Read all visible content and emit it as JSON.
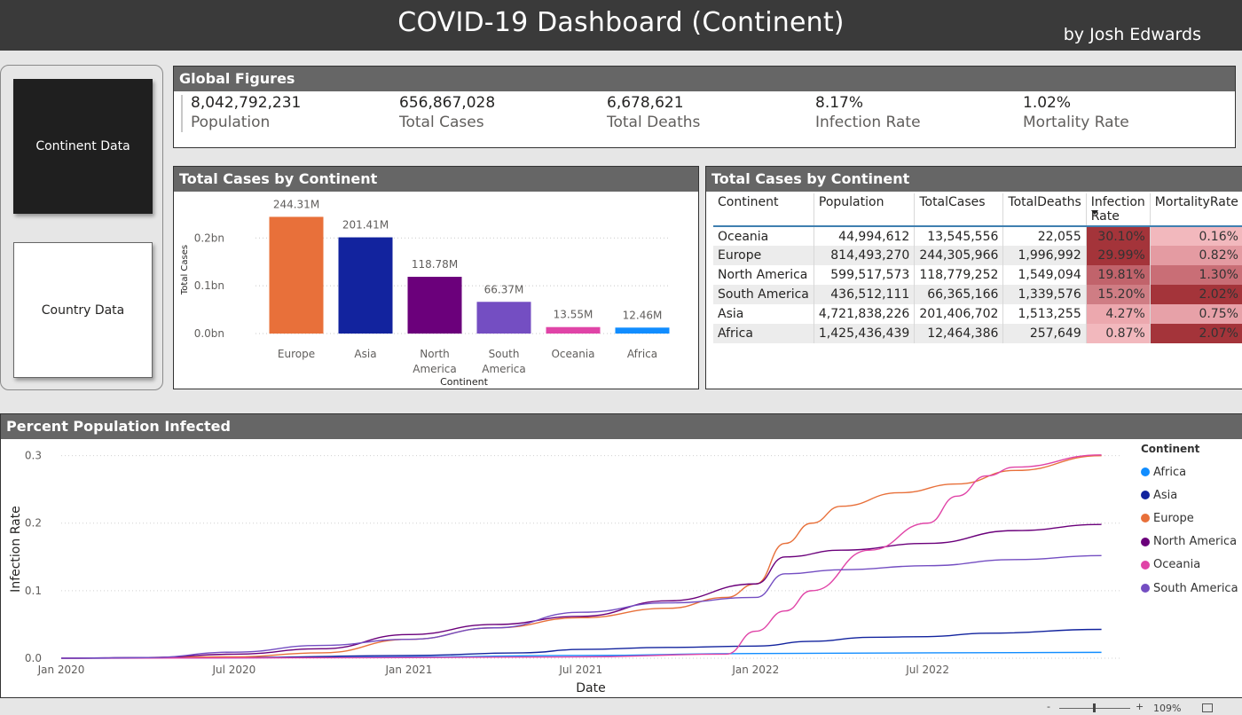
{
  "header": {
    "title": "COVID-19 Dashboard (Continent)",
    "author": "by Josh Edwards"
  },
  "nav": {
    "continent_label": "Continent Data",
    "country_label": "Country Data"
  },
  "global": {
    "title": "Global Figures",
    "kpis": [
      {
        "value": "8,042,792,231",
        "label": "Population"
      },
      {
        "value": "656,867,028",
        "label": "Total Cases"
      },
      {
        "value": "6,678,621",
        "label": "Total Deaths"
      },
      {
        "value": "8.17%",
        "label": "Infection Rate"
      },
      {
        "value": "1.02%",
        "label": "Mortality Rate"
      }
    ]
  },
  "bar_card": {
    "title": "Total Cases by Continent"
  },
  "table_card": {
    "title": "Total Cases by Continent",
    "columns": [
      "Continent",
      "Population",
      "TotalCases",
      "TotalDeaths",
      "Infection Rate",
      "MortalityRate"
    ],
    "sort_icon": "sort-descending-icon",
    "rows": [
      {
        "continent": "Oceania",
        "population": "44,994,612",
        "cases": "13,545,556",
        "deaths": "22,055",
        "infection": "30.10%",
        "mortality": "0.16%",
        "ir_color": "#a4343a",
        "mr_color": "#f2b8bd"
      },
      {
        "continent": "Europe",
        "population": "814,493,270",
        "cases": "244,305,966",
        "deaths": "1,996,992",
        "infection": "29.99%",
        "mortality": "0.82%",
        "ir_color": "#a4343a",
        "mr_color": "#e49ba2"
      },
      {
        "continent": "North America",
        "population": "599,517,573",
        "cases": "118,779,252",
        "deaths": "1,549,094",
        "infection": "19.81%",
        "mortality": "1.30%",
        "ir_color": "#c1636b",
        "mr_color": "#c96e76"
      },
      {
        "continent": "South America",
        "population": "436,512,111",
        "cases": "66,365,166",
        "deaths": "1,339,576",
        "infection": "15.20%",
        "mortality": "2.02%",
        "ir_color": "#cf7d84",
        "mr_color": "#a4343a"
      },
      {
        "continent": "Asia",
        "population": "4,721,838,226",
        "cases": "201,406,702",
        "deaths": "1,513,255",
        "infection": "4.27%",
        "mortality": "0.75%",
        "ir_color": "#eca8ae",
        "mr_color": "#e7a1a8"
      },
      {
        "continent": "Africa",
        "population": "1,425,436,439",
        "cases": "12,464,386",
        "deaths": "257,649",
        "infection": "0.87%",
        "mortality": "2.07%",
        "ir_color": "#f2b8bd",
        "mr_color": "#a4343a"
      }
    ]
  },
  "line_card": {
    "title": "Percent Population Infected"
  },
  "chart_data": [
    {
      "type": "bar",
      "title": "Total Cases by Continent",
      "xlabel": "Continent",
      "ylabel": "Total Cases",
      "ylim": [
        0,
        0.26
      ],
      "yticks": [
        {
          "v": 0,
          "label": "0.0bn"
        },
        {
          "v": 0.1,
          "label": "0.1bn"
        },
        {
          "v": 0.2,
          "label": "0.2bn"
        }
      ],
      "categories": [
        [
          "Europe"
        ],
        [
          "Asia"
        ],
        [
          "North",
          "America"
        ],
        [
          "South",
          "America"
        ],
        [
          "Oceania"
        ],
        [
          "Africa"
        ]
      ],
      "values": [
        0.24431,
        0.20141,
        0.11878,
        0.06637,
        0.01355,
        0.01246
      ],
      "labels": [
        "244.31M",
        "201.41M",
        "118.78M",
        "66.37M",
        "13.55M",
        "12.46M"
      ],
      "colors": [
        "#e8703a",
        "#12239e",
        "#6b007b",
        "#744ec2",
        "#e044a7",
        "#118dff"
      ],
      "grid": true
    },
    {
      "type": "line",
      "title": "Percent Population Infected",
      "xlabel": "Date",
      "ylabel": "Infection Rate",
      "xlim": [
        "2020-01-01",
        "2023-01-20"
      ],
      "ylim": [
        0,
        0.31
      ],
      "yticks": [
        0.0,
        0.1,
        0.2,
        0.3
      ],
      "xticks": [
        [
          "2020-01-01",
          "Jan 2020"
        ],
        [
          "2020-07-01",
          "Jul 2020"
        ],
        [
          "2021-01-01",
          "Jan 2021"
        ],
        [
          "2021-07-01",
          "Jul 2021"
        ],
        [
          "2022-01-01",
          "Jan 2022"
        ],
        [
          "2022-07-01",
          "Jul 2022"
        ]
      ],
      "legend_title": "Continent",
      "legend_position": "right",
      "series": [
        {
          "name": "Africa",
          "color": "#118dff",
          "points": [
            [
              "2020-01-01",
              0
            ],
            [
              "2020-07-01",
              0.0005
            ],
            [
              "2021-01-01",
              0.002
            ],
            [
              "2021-07-01",
              0.004
            ],
            [
              "2022-01-01",
              0.007
            ],
            [
              "2022-07-01",
              0.008
            ],
            [
              "2022-12-31",
              0.0087
            ]
          ]
        },
        {
          "name": "Asia",
          "color": "#12239e",
          "points": [
            [
              "2020-01-01",
              0
            ],
            [
              "2020-07-01",
              0.001
            ],
            [
              "2021-01-01",
              0.004
            ],
            [
              "2021-05-01",
              0.008
            ],
            [
              "2021-07-01",
              0.013
            ],
            [
              "2021-10-01",
              0.016
            ],
            [
              "2022-01-01",
              0.018
            ],
            [
              "2022-03-01",
              0.025
            ],
            [
              "2022-05-01",
              0.031
            ],
            [
              "2022-07-01",
              0.032
            ],
            [
              "2022-09-01",
              0.037
            ],
            [
              "2022-12-31",
              0.0427
            ]
          ]
        },
        {
          "name": "Europe",
          "color": "#e8703a",
          "points": [
            [
              "2020-01-01",
              0
            ],
            [
              "2020-07-01",
              0.002
            ],
            [
              "2020-10-01",
              0.008
            ],
            [
              "2021-01-01",
              0.028
            ],
            [
              "2021-04-01",
              0.045
            ],
            [
              "2021-07-01",
              0.06
            ],
            [
              "2021-10-01",
              0.074
            ],
            [
              "2021-12-01",
              0.09
            ],
            [
              "2022-01-01",
              0.11
            ],
            [
              "2022-02-01",
              0.17
            ],
            [
              "2022-03-01",
              0.2
            ],
            [
              "2022-04-01",
              0.225
            ],
            [
              "2022-06-01",
              0.245
            ],
            [
              "2022-08-01",
              0.258
            ],
            [
              "2022-10-01",
              0.278
            ],
            [
              "2022-12-31",
              0.2999
            ]
          ]
        },
        {
          "name": "North America",
          "color": "#6b007b",
          "points": [
            [
              "2020-01-01",
              0
            ],
            [
              "2020-04-01",
              0.001
            ],
            [
              "2020-07-01",
              0.006
            ],
            [
              "2020-10-01",
              0.014
            ],
            [
              "2021-01-01",
              0.035
            ],
            [
              "2021-04-01",
              0.05
            ],
            [
              "2021-07-01",
              0.062
            ],
            [
              "2021-10-01",
              0.085
            ],
            [
              "2022-01-01",
              0.11
            ],
            [
              "2022-02-01",
              0.15
            ],
            [
              "2022-04-01",
              0.16
            ],
            [
              "2022-07-01",
              0.17
            ],
            [
              "2022-10-01",
              0.189
            ],
            [
              "2022-12-31",
              0.1981
            ]
          ]
        },
        {
          "name": "Oceania",
          "color": "#e044a7",
          "points": [
            [
              "2020-01-01",
              0
            ],
            [
              "2021-01-01",
              0.001
            ],
            [
              "2021-07-01",
              0.002
            ],
            [
              "2021-12-01",
              0.006
            ],
            [
              "2022-01-01",
              0.04
            ],
            [
              "2022-02-01",
              0.07
            ],
            [
              "2022-03-01",
              0.1
            ],
            [
              "2022-05-01",
              0.16
            ],
            [
              "2022-07-01",
              0.2
            ],
            [
              "2022-08-01",
              0.24
            ],
            [
              "2022-09-01",
              0.27
            ],
            [
              "2022-10-01",
              0.283
            ],
            [
              "2022-12-31",
              0.301
            ]
          ]
        },
        {
          "name": "South America",
          "color": "#744ec2",
          "points": [
            [
              "2020-01-01",
              0
            ],
            [
              "2020-04-01",
              0.001
            ],
            [
              "2020-07-01",
              0.009
            ],
            [
              "2020-10-01",
              0.019
            ],
            [
              "2021-01-01",
              0.028
            ],
            [
              "2021-04-01",
              0.045
            ],
            [
              "2021-07-01",
              0.068
            ],
            [
              "2021-10-01",
              0.082
            ],
            [
              "2022-01-01",
              0.09
            ],
            [
              "2022-02-01",
              0.125
            ],
            [
              "2022-04-01",
              0.131
            ],
            [
              "2022-07-01",
              0.137
            ],
            [
              "2022-10-01",
              0.146
            ],
            [
              "2022-12-31",
              0.152
            ]
          ]
        }
      ]
    }
  ],
  "zoom": {
    "minus": "-",
    "plus": "+",
    "level": "109%"
  }
}
